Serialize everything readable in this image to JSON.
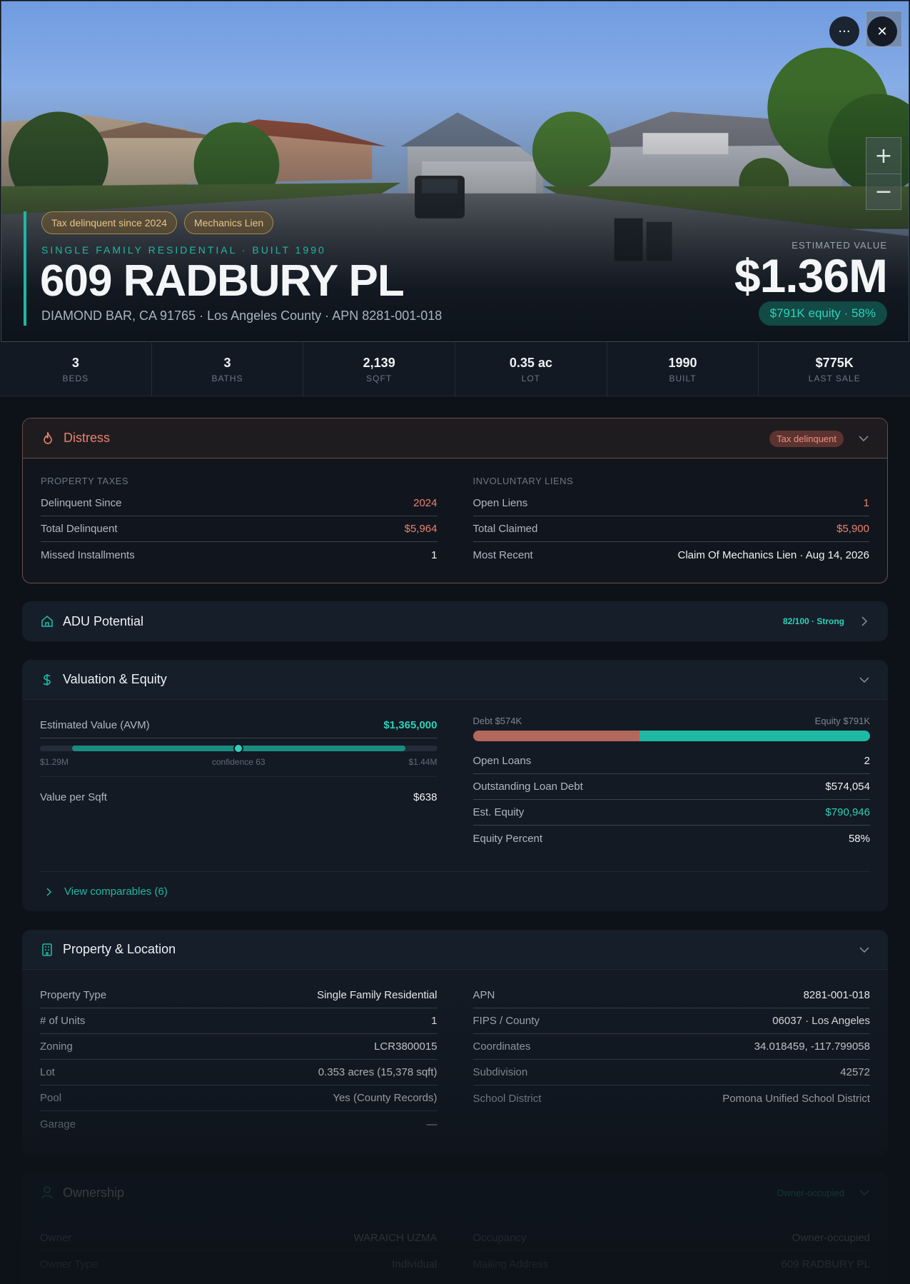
{
  "hero": {
    "tags": [
      "Tax delinquent since 2024",
      "Mechanics Lien"
    ],
    "subtitle": "SINGLE FAMILY RESIDENTIAL · BUILT 1990",
    "title": "609 RADBURY PL",
    "address": "DIAMOND BAR, CA 91765 · Los Angeles County · APN 8281-001-018",
    "est_label": "ESTIMATED VALUE",
    "est_value": "$1.36M",
    "equity_pill": "$791K equity · 58%"
  },
  "controls": {
    "more_icon": "···",
    "close_icon": "✕",
    "zoom_in": "+",
    "zoom_out": "−"
  },
  "stats": [
    {
      "value": "3",
      "label": "BEDS"
    },
    {
      "value": "3",
      "label": "BATHS"
    },
    {
      "value": "2,139",
      "label": "SQFT"
    },
    {
      "value": "0.35 ac",
      "label": "LOT"
    },
    {
      "value": "1990",
      "label": "BUILT"
    },
    {
      "value": "$775K",
      "label": "LAST SALE"
    }
  ],
  "distress": {
    "title": "Distress",
    "badge": "Tax delinquent",
    "left_label": "PROPERTY TAXES",
    "left_rows": [
      {
        "k": "Delinquent Since",
        "v": "2024"
      },
      {
        "k": "Total Delinquent",
        "v": "$5,964"
      },
      {
        "k": "Missed Installments",
        "v": "1"
      }
    ],
    "right_label": "INVOLUNTARY LIENS",
    "right_rows": [
      {
        "k": "Open Liens",
        "v": "1"
      },
      {
        "k": "Total Claimed",
        "v": "$5,900"
      },
      {
        "k": "Most Recent",
        "v": "Claim Of Mechanics Lien · Aug 14, 2026"
      }
    ]
  },
  "adu": {
    "title": "ADU Potential",
    "score": "82/100 · Strong",
    "score_value": 82
  },
  "valuation": {
    "title": "Valuation & Equity",
    "avm_label": "Estimated Value (AVM)",
    "avm_value": "$1,365,000",
    "range_low": "$1.29M",
    "range_high": "$1.44M",
    "confidence": "confidence 63",
    "range_fill_start": 0.08,
    "range_fill_end": 0.92,
    "avm_position": 0.5,
    "vps_label": "Value per Sqft",
    "vps_value": "$638",
    "debt_label": "Debt $574K",
    "equity_label": "Equity $791K",
    "debt_fraction": 0.42,
    "rows": [
      {
        "k": "Open Loans",
        "v": "2"
      },
      {
        "k": "Outstanding Loan Debt",
        "v": "$574,054"
      },
      {
        "k": "Est. Equity",
        "v": "$790,946"
      },
      {
        "k": "Equity Percent",
        "v": "58%"
      }
    ],
    "comparables": "View comparables (6)"
  },
  "property": {
    "title": "Property & Location",
    "left_rows": [
      {
        "k": "Property Type",
        "v": "Single Family Residential"
      },
      {
        "k": "# of Units",
        "v": "1"
      },
      {
        "k": "Zoning",
        "v": "LCR3800015"
      },
      {
        "k": "Lot",
        "v": "0.353 acres (15,378 sqft)"
      },
      {
        "k": "Pool",
        "v": "Yes (County Records)"
      },
      {
        "k": "Garage",
        "v": "—"
      }
    ],
    "right_rows": [
      {
        "k": "APN",
        "v": "8281-001-018"
      },
      {
        "k": "FIPS / County",
        "v": "06037 · Los Angeles"
      },
      {
        "k": "Coordinates",
        "v": "34.018459, -117.799058"
      },
      {
        "k": "Subdivision",
        "v": "42572"
      },
      {
        "k": "School District",
        "v": "Pomona Unified School District"
      }
    ]
  },
  "ownership": {
    "title": "Ownership",
    "badge": "Owner-occupied",
    "left_rows": [
      {
        "k": "Owner",
        "v": "WARAICH UZMA"
      },
      {
        "k": "Owner Type",
        "v": "Individual"
      }
    ],
    "right_rows": [
      {
        "k": "Occupancy",
        "v": "Owner-occupied"
      },
      {
        "k": "Mailing Address",
        "v": "609 RADBURY PL"
      }
    ]
  },
  "colors": {
    "accent": "#1fb8a4",
    "distress": "#e8826d",
    "debt": "#b3675d"
  }
}
